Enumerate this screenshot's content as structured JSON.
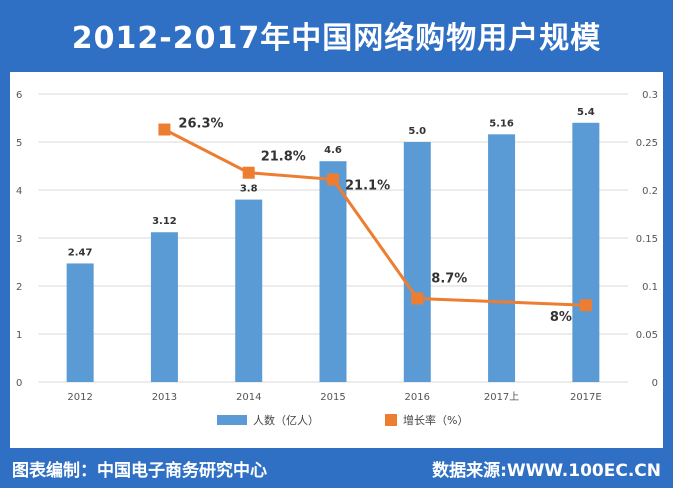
{
  "header": {
    "title": "2012-2017年中国网络购物用户规模"
  },
  "footer": {
    "left": "图表编制：中国电子商务研究中心",
    "right": "数据来源:WWW.100EC.CN"
  },
  "colors": {
    "background": "#2f6fc4",
    "bar": "#5b9bd5",
    "line": "#ed7d31",
    "grid": "#d9d9d9"
  },
  "chart_data": {
    "type": "bar",
    "categories": [
      "2012",
      "2013",
      "2014",
      "2015",
      "2016",
      "2017上",
      "2017E"
    ],
    "series": [
      {
        "name": "人数（亿人）",
        "type": "bar",
        "axis": "left",
        "values": [
          2.47,
          3.12,
          3.8,
          4.6,
          5.0,
          5.16,
          5.4
        ],
        "labels": [
          "2.47",
          "3.12",
          "3.8",
          "4.6",
          "5.0",
          "5.16",
          "5.4"
        ]
      },
      {
        "name": "增长率（%）",
        "type": "line",
        "axis": "right",
        "values": [
          null,
          0.263,
          0.218,
          0.211,
          0.087,
          null,
          0.08
        ],
        "labels": [
          "",
          "26.3%",
          "21.8%",
          "21.1%",
          "8.7%",
          "",
          "8%"
        ]
      }
    ],
    "y_left": {
      "lim": [
        0,
        6
      ],
      "ticks": [
        "0",
        "1",
        "2",
        "3",
        "4",
        "5",
        "6"
      ]
    },
    "y_right": {
      "lim": [
        0,
        0.3
      ],
      "ticks": [
        "0",
        "0.05",
        "0.1",
        "0.15",
        "0.2",
        "0.25",
        "0.3"
      ]
    },
    "grid": true,
    "legend": "bottom"
  }
}
